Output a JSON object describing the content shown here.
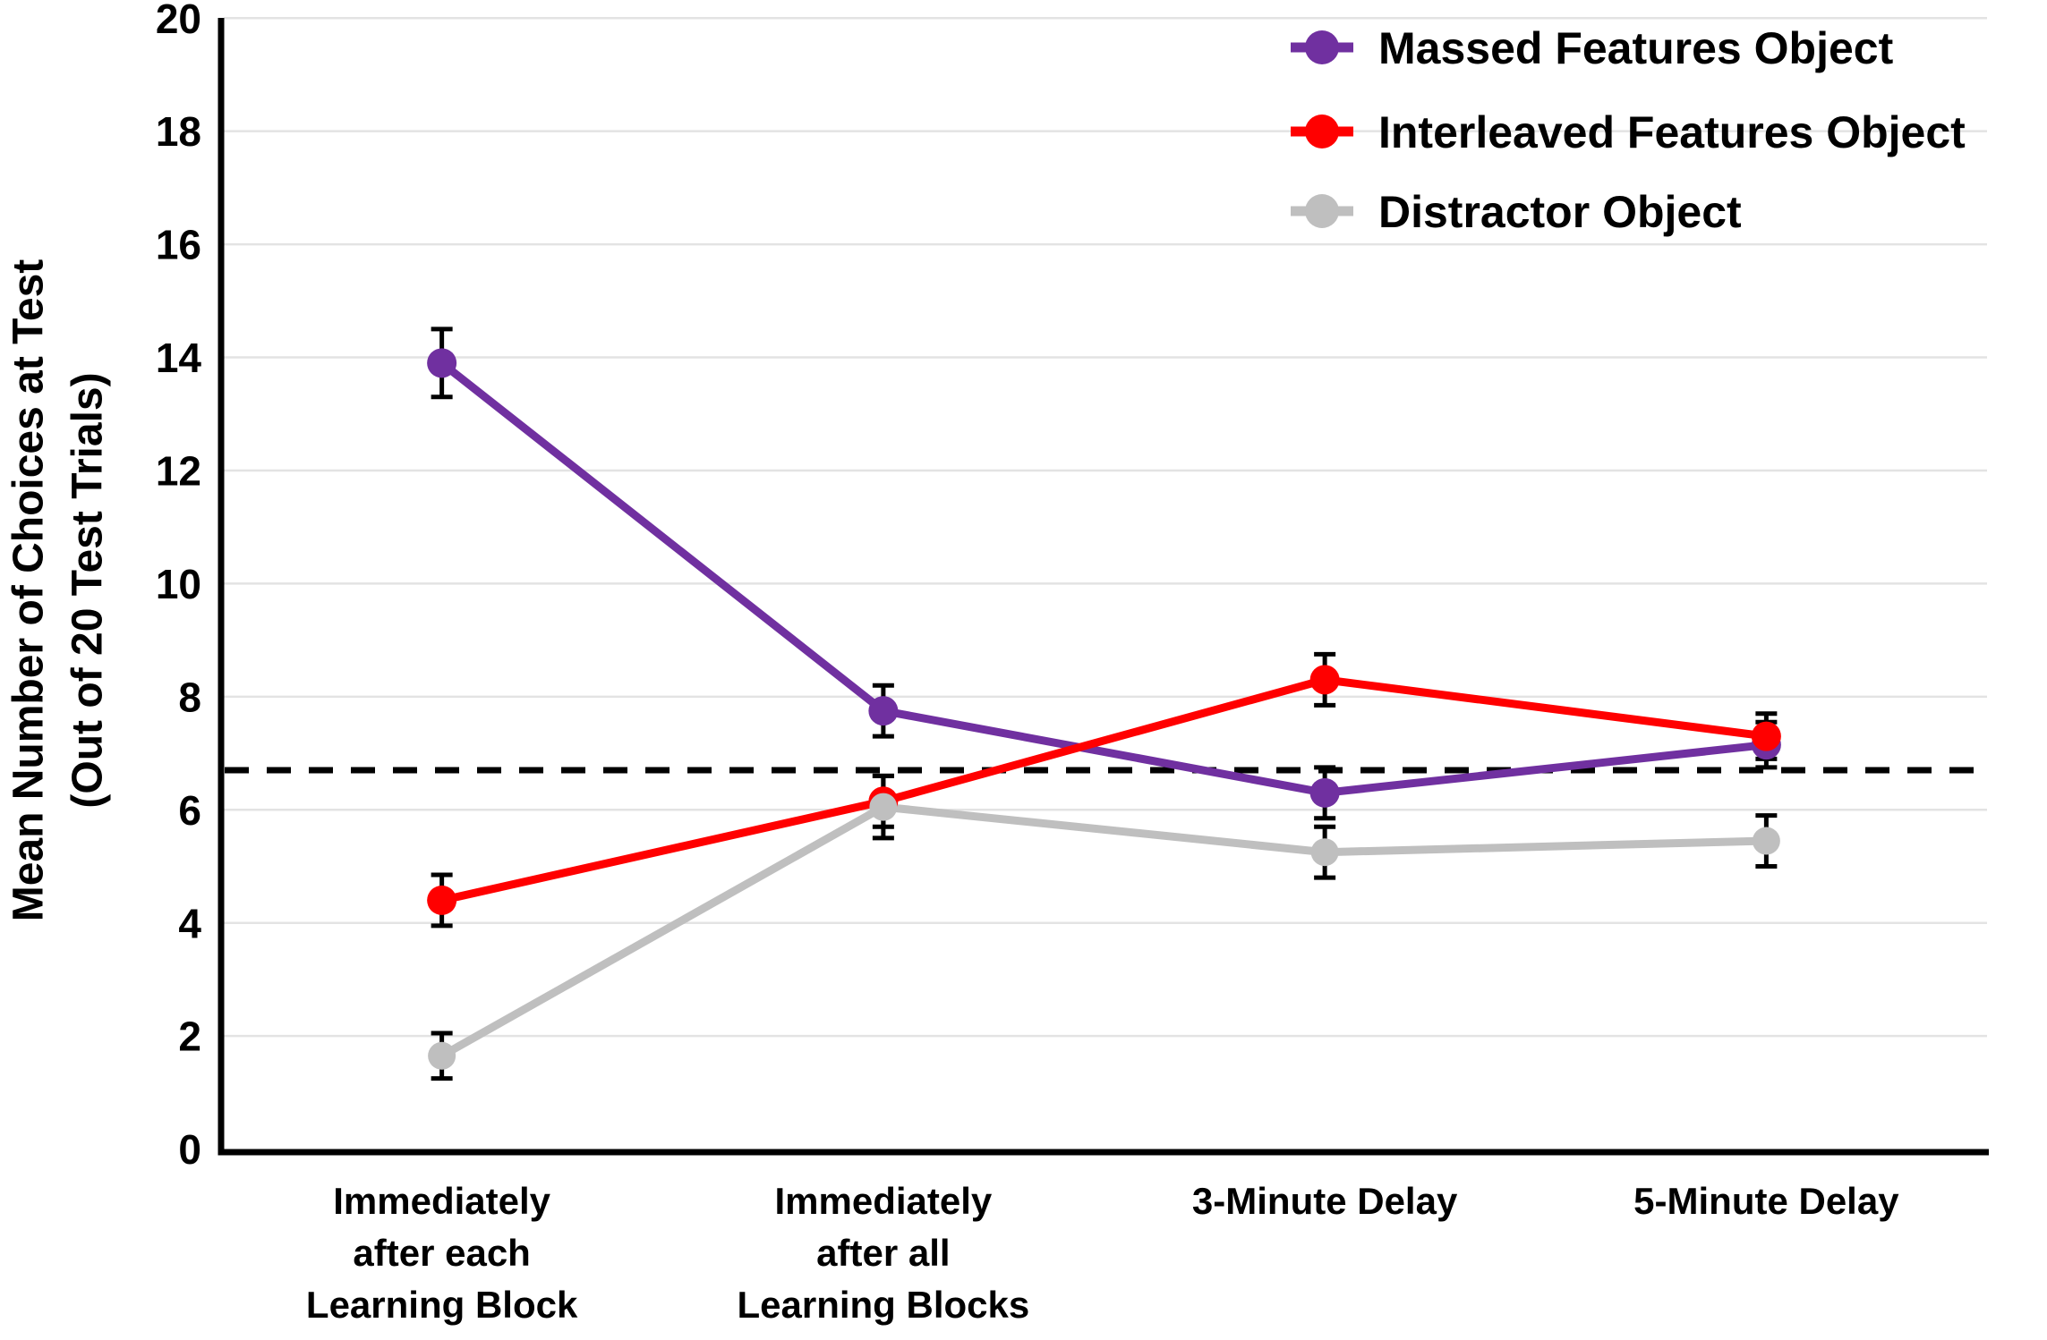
{
  "figure": {
    "background": "#FFFFFF"
  },
  "chart_data": {
    "type": "line",
    "title": "",
    "xlabel": "",
    "ylabel_lines": [
      "Mean Number of Choices at Test",
      "(Out of 20 Test Trials)"
    ],
    "categories": [
      [
        "Immediately",
        "after each",
        "Learning Block"
      ],
      [
        "Immediately",
        "after all",
        "Learning Blocks"
      ],
      [
        "3-Minute Delay"
      ],
      [
        "5-Minute Delay"
      ]
    ],
    "ylim": [
      0,
      20
    ],
    "yticks": [
      0,
      2,
      4,
      6,
      8,
      10,
      12,
      14,
      16,
      18,
      20
    ],
    "grid": "horizontal",
    "grid_color": "#E3E3E3",
    "axis_color": "#000000",
    "text_color": "#000000",
    "error_bar_color": "#000000",
    "chance_line": {
      "value": 6.7,
      "style": "dashed",
      "color": "#000000"
    },
    "legend_position": "top-right",
    "series": [
      {
        "name": "Massed Features Object",
        "color": "#7030A0",
        "values": [
          13.9,
          7.75,
          6.3,
          7.15
        ],
        "errors": [
          0.6,
          0.45,
          0.45,
          0.4
        ]
      },
      {
        "name": "Interleaved Features Object",
        "color": "#FF0000",
        "values": [
          4.4,
          6.15,
          8.3,
          7.3
        ],
        "errors": [
          0.45,
          0.45,
          0.45,
          0.4
        ]
      },
      {
        "name": "Distractor Object",
        "color": "#BFBFBF",
        "values": [
          1.65,
          6.05,
          5.25,
          5.45
        ],
        "errors": [
          0.4,
          0.55,
          0.45,
          0.45
        ]
      }
    ]
  }
}
